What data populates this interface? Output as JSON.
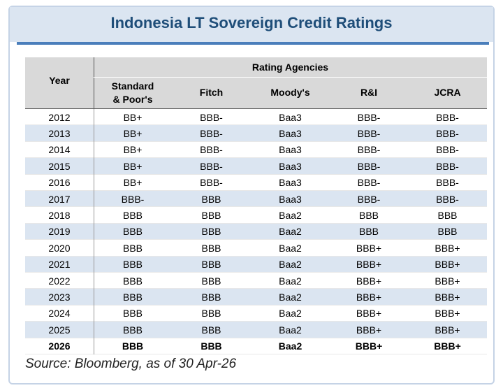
{
  "title": "Indonesia LT Sovereign Credit Ratings",
  "table": {
    "header": {
      "year": "Year",
      "group": "Rating Agencies",
      "columns": [
        "Standard & Poor's",
        "Fitch",
        "Moody's",
        "R&I",
        "JCRA"
      ]
    },
    "rows": [
      [
        "2012",
        "BB+",
        "BBB-",
        "Baa3",
        "BBB-",
        "BBB-"
      ],
      [
        "2013",
        "BB+",
        "BBB-",
        "Baa3",
        "BBB-",
        "BBB-"
      ],
      [
        "2014",
        "BB+",
        "BBB-",
        "Baa3",
        "BBB-",
        "BBB-"
      ],
      [
        "2015",
        "BB+",
        "BBB-",
        "Baa3",
        "BBB-",
        "BBB-"
      ],
      [
        "2016",
        "BB+",
        "BBB-",
        "Baa3",
        "BBB-",
        "BBB-"
      ],
      [
        "2017",
        "BBB-",
        "BBB",
        "Baa3",
        "BBB-",
        "BBB-"
      ],
      [
        "2018",
        "BBB",
        "BBB",
        "Baa2",
        "BBB",
        "BBB"
      ],
      [
        "2019",
        "BBB",
        "BBB",
        "Baa2",
        "BBB",
        "BBB"
      ],
      [
        "2020",
        "BBB",
        "BBB",
        "Baa2",
        "BBB+",
        "BBB+"
      ],
      [
        "2021",
        "BBB",
        "BBB",
        "Baa2",
        "BBB+",
        "BBB+"
      ],
      [
        "2022",
        "BBB",
        "BBB",
        "Baa2",
        "BBB+",
        "BBB+"
      ],
      [
        "2023",
        "BBB",
        "BBB",
        "Baa2",
        "BBB+",
        "BBB+"
      ],
      [
        "2024",
        "BBB",
        "BBB",
        "Baa2",
        "BBB+",
        "BBB+"
      ],
      [
        "2025",
        "BBB",
        "BBB",
        "Baa2",
        "BBB+",
        "BBB+"
      ],
      [
        "2026",
        "BBB",
        "BBB",
        "Baa2",
        "BBB+",
        "BBB+"
      ]
    ]
  },
  "source": "Source: Bloomberg, as of 30 Apr-26"
}
